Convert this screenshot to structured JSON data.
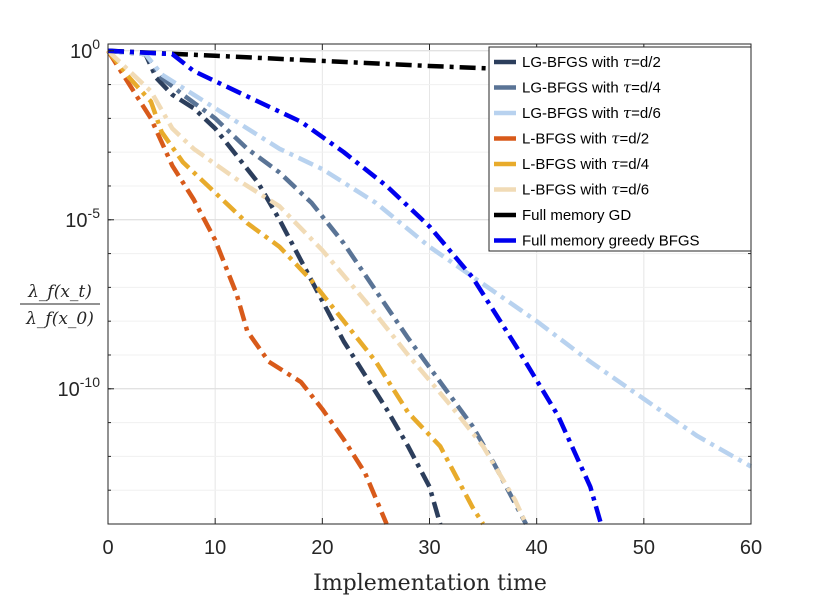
{
  "chart_data": {
    "type": "line",
    "xlabel": "Implementation time",
    "ylabel_num": "λ_f(x_t)",
    "ylabel_den": "λ_f(x_0)",
    "xlim": [
      0,
      60
    ],
    "ylim_log10": [
      -14,
      0.2
    ],
    "yscale": "log",
    "x_ticks": [
      0,
      10,
      20,
      30,
      40,
      50,
      60
    ],
    "y_ticks": [
      {
        "exp": 0,
        "base": "10",
        "sup": "0"
      },
      {
        "exp": -5,
        "base": "10",
        "sup": "-5"
      },
      {
        "exp": -10,
        "base": "10",
        "sup": "-10"
      }
    ],
    "grid": true,
    "legend_position": "top-right",
    "series": [
      {
        "name": "LG-BFGS with τ=d/2",
        "prefix": "LG-BFGS with ",
        "tau": "τ",
        "suffix": "=d/2",
        "color": "#2c3e5c",
        "points": [
          [
            0,
            0
          ],
          [
            3.5,
            -0.1
          ],
          [
            4.5,
            -0.8
          ],
          [
            6,
            -1.3
          ],
          [
            8,
            -1.7
          ],
          [
            10,
            -2.3
          ],
          [
            12,
            -3.1
          ],
          [
            14,
            -3.9
          ],
          [
            16,
            -5
          ],
          [
            18,
            -6.2
          ],
          [
            20,
            -7.4
          ],
          [
            22,
            -8.6
          ],
          [
            24,
            -9.6
          ],
          [
            26,
            -10.6
          ],
          [
            28,
            -11.7
          ],
          [
            30,
            -12.9
          ],
          [
            31,
            -14
          ]
        ]
      },
      {
        "name": "LG-BFGS with τ=d/4",
        "prefix": "LG-BFGS with ",
        "tau": "τ",
        "suffix": "=d/4",
        "color": "#5a7496",
        "points": [
          [
            0,
            0
          ],
          [
            3.5,
            -0.1
          ],
          [
            5,
            -0.8
          ],
          [
            7,
            -1.3
          ],
          [
            10,
            -2
          ],
          [
            13,
            -2.9
          ],
          [
            16,
            -3.6
          ],
          [
            19,
            -4.5
          ],
          [
            22,
            -5.7
          ],
          [
            25,
            -7.1
          ],
          [
            28,
            -8.5
          ],
          [
            31,
            -9.8
          ],
          [
            34,
            -11.1
          ],
          [
            36,
            -12.2
          ],
          [
            38,
            -13.4
          ],
          [
            39,
            -14
          ]
        ]
      },
      {
        "name": "LG-BFGS with τ=d/6",
        "prefix": "LG-BFGS with ",
        "tau": "τ",
        "suffix": "=d/6",
        "color": "#b8d2ef",
        "points": [
          [
            0,
            0
          ],
          [
            3.5,
            -0.1
          ],
          [
            5,
            -0.7
          ],
          [
            8,
            -1.3
          ],
          [
            12,
            -2.1
          ],
          [
            16,
            -2.9
          ],
          [
            20,
            -3.5
          ],
          [
            25,
            -4.5
          ],
          [
            30,
            -5.8
          ],
          [
            35,
            -6.9
          ],
          [
            40,
            -8
          ],
          [
            45,
            -9.2
          ],
          [
            50,
            -10.3
          ],
          [
            55,
            -11.4
          ],
          [
            60,
            -12.3
          ]
        ]
      },
      {
        "name": "L-BFGS with τ=d/2",
        "prefix": "L-BFGS with ",
        "tau": "τ",
        "suffix": "=d/2",
        "color": "#d85a1a",
        "points": [
          [
            0,
            0
          ],
          [
            2,
            -1
          ],
          [
            4,
            -2
          ],
          [
            6,
            -3.4
          ],
          [
            8,
            -4.4
          ],
          [
            10,
            -5.6
          ],
          [
            12,
            -7.2
          ],
          [
            13,
            -8.3
          ],
          [
            15,
            -9.2
          ],
          [
            18,
            -9.8
          ],
          [
            20,
            -10.6
          ],
          [
            22,
            -11.5
          ],
          [
            24,
            -12.5
          ],
          [
            26,
            -14
          ]
        ]
      },
      {
        "name": "L-BFGS with τ=d/4",
        "prefix": "L-BFGS with ",
        "tau": "τ",
        "suffix": "=d/4",
        "color": "#e8ab2b",
        "points": [
          [
            0,
            0
          ],
          [
            2,
            -0.8
          ],
          [
            4,
            -1.5
          ],
          [
            5,
            -2.4
          ],
          [
            7,
            -3.3
          ],
          [
            10,
            -4.2
          ],
          [
            13,
            -5.1
          ],
          [
            16,
            -5.8
          ],
          [
            19,
            -6.8
          ],
          [
            22,
            -8
          ],
          [
            25,
            -9.2
          ],
          [
            28,
            -10.7
          ],
          [
            31,
            -11.7
          ],
          [
            34,
            -13.5
          ],
          [
            35,
            -14
          ]
        ]
      },
      {
        "name": "L-BFGS with τ=d/6",
        "prefix": "L-BFGS with ",
        "tau": "τ",
        "suffix": "=d/6",
        "color": "#f1dbb6",
        "points": [
          [
            0,
            0
          ],
          [
            2,
            -0.6
          ],
          [
            4,
            -1.2
          ],
          [
            6,
            -2.3
          ],
          [
            8,
            -2.9
          ],
          [
            12,
            -3.8
          ],
          [
            16,
            -4.6
          ],
          [
            20,
            -5.9
          ],
          [
            24,
            -7.4
          ],
          [
            28,
            -9
          ],
          [
            32,
            -10.5
          ],
          [
            35,
            -11.7
          ],
          [
            38,
            -13.3
          ],
          [
            39,
            -14
          ]
        ]
      },
      {
        "name": "Full memory GD",
        "color": "#000000",
        "points": [
          [
            0,
            0
          ],
          [
            10,
            -0.15
          ],
          [
            20,
            -0.3
          ],
          [
            30,
            -0.45
          ],
          [
            38,
            -0.55
          ]
        ]
      },
      {
        "name": "Full memory greedy BFGS",
        "color": "#0000ee",
        "points": [
          [
            0,
            0
          ],
          [
            6,
            -0.1
          ],
          [
            8,
            -0.6
          ],
          [
            10,
            -0.9
          ],
          [
            14,
            -1.5
          ],
          [
            18,
            -2.1
          ],
          [
            22,
            -3
          ],
          [
            26,
            -4
          ],
          [
            30,
            -5.2
          ],
          [
            34,
            -6.7
          ],
          [
            38,
            -8.7
          ],
          [
            42,
            -10.8
          ],
          [
            45,
            -12.9
          ],
          [
            46,
            -14
          ]
        ]
      }
    ]
  }
}
